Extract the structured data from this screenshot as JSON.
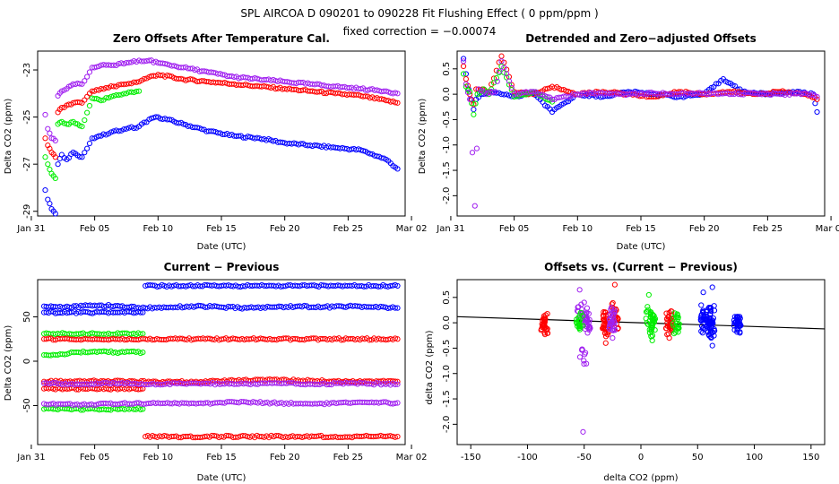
{
  "header": {
    "title": "SPL   AIRCOA D   090201 to 090228   Fit Flushing Effect ( 0 ppm/ppm )",
    "subtitle": "fixed correction = −0.00074"
  },
  "colors": {
    "blue": "#0000ff",
    "red": "#ff0000",
    "green": "#00ee00",
    "purple": "#a020f0",
    "black": "#000000"
  },
  "chart_data": [
    {
      "id": "zero-offsets",
      "type": "scatter",
      "title": "Zero Offsets After Temperature Cal.",
      "xlabel": "Date (UTC)",
      "ylabel": "Delta CO2 (ppm)",
      "xlim": [
        0.5,
        29.5
      ],
      "ylim": [
        -29.2,
        -22.2
      ],
      "x_ticks": [
        {
          "v": 0,
          "label": "Jan 31"
        },
        {
          "v": 5,
          "label": "Feb 05"
        },
        {
          "v": 10,
          "label": "Feb 10"
        },
        {
          "v": 15,
          "label": "Feb 15"
        },
        {
          "v": 20,
          "label": "Feb 20"
        },
        {
          "v": 25,
          "label": "Feb 25"
        },
        {
          "v": 30,
          "label": "Mar 02"
        }
      ],
      "y_ticks": [
        {
          "v": -23,
          "label": "-23"
        },
        {
          "v": -25,
          "label": "-25"
        },
        {
          "v": -27,
          "label": "-27"
        },
        {
          "v": -29,
          "label": "-29"
        }
      ],
      "series": [
        {
          "name": "blue",
          "color": "#0000ff",
          "x": [
            1.1,
            1.3,
            1.6,
            1.9,
            2.1,
            2.4,
            2.8,
            3.3,
            4.0,
            4.8,
            5.5,
            6.5,
            7.5,
            8.5,
            9.3,
            10.0,
            12.0,
            14.0,
            16.0,
            18.0,
            20.0,
            22.0,
            24.0,
            26.0,
            28.0,
            28.9
          ],
          "y": [
            -28.1,
            -28.5,
            -28.9,
            -29.1,
            -27.0,
            -26.6,
            -26.8,
            -26.5,
            -26.7,
            -25.9,
            -25.8,
            -25.6,
            -25.5,
            -25.4,
            -25.1,
            -25.0,
            -25.3,
            -25.6,
            -25.8,
            -25.9,
            -26.1,
            -26.2,
            -26.3,
            -26.4,
            -26.8,
            -27.2
          ]
        },
        {
          "name": "red",
          "color": "#ff0000",
          "x": [
            1.1,
            1.3,
            1.6,
            1.9,
            2.1,
            2.4,
            2.8,
            3.3,
            4.0,
            4.8,
            5.5,
            6.5,
            7.5,
            8.5,
            9.3,
            10.0,
            12.0,
            14.0,
            16.0,
            18.0,
            20.0,
            22.0,
            24.0,
            26.0,
            28.0,
            28.9
          ],
          "y": [
            -25.9,
            -26.2,
            -26.5,
            -26.7,
            -24.8,
            -24.6,
            -24.5,
            -24.4,
            -24.4,
            -23.9,
            -23.8,
            -23.7,
            -23.6,
            -23.5,
            -23.3,
            -23.2,
            -23.4,
            -23.5,
            -23.6,
            -23.7,
            -23.8,
            -23.9,
            -24.0,
            -24.1,
            -24.3,
            -24.4
          ]
        },
        {
          "name": "green",
          "color": "#00ee00",
          "x": [
            1.1,
            1.3,
            1.6,
            1.9,
            2.1,
            2.4,
            2.8,
            3.3,
            4.0,
            4.8,
            5.5,
            6.5,
            7.5,
            8.5
          ],
          "y": [
            -26.7,
            -27.0,
            -27.4,
            -27.6,
            -25.3,
            -25.2,
            -25.3,
            -25.2,
            -25.4,
            -24.2,
            -24.3,
            -24.1,
            -24.0,
            -23.9
          ]
        },
        {
          "name": "purple",
          "color": "#a020f0",
          "x": [
            1.1,
            1.3,
            1.6,
            1.9,
            2.1,
            2.4,
            2.8,
            3.3,
            4.0,
            4.8,
            5.5,
            6.5,
            7.5,
            8.5,
            9.3,
            10.0,
            12.0,
            14.0,
            16.0,
            18.0,
            20.0,
            22.0,
            24.0,
            26.0,
            28.0,
            28.9
          ],
          "y": [
            -24.9,
            -25.5,
            -25.9,
            -26.0,
            -24.1,
            -23.9,
            -23.8,
            -23.6,
            -23.6,
            -22.9,
            -22.8,
            -22.8,
            -22.7,
            -22.6,
            -22.6,
            -22.7,
            -22.9,
            -23.1,
            -23.3,
            -23.4,
            -23.5,
            -23.6,
            -23.7,
            -23.8,
            -23.9,
            -24.0
          ]
        }
      ]
    },
    {
      "id": "detrended",
      "type": "scatter",
      "title": "Detrended and Zero−adjusted Offsets",
      "xlabel": "Date (UTC)",
      "ylabel": "Delta CO2 (ppm)",
      "xlim": [
        0.5,
        29.5
      ],
      "ylim": [
        -2.4,
        0.85
      ],
      "x_ticks": [
        {
          "v": 0,
          "label": "Jan 31"
        },
        {
          "v": 5,
          "label": "Feb 05"
        },
        {
          "v": 10,
          "label": "Feb 10"
        },
        {
          "v": 15,
          "label": "Feb 15"
        },
        {
          "v": 20,
          "label": "Feb 20"
        },
        {
          "v": 25,
          "label": "Feb 25"
        },
        {
          "v": 30,
          "label": "Mar 02"
        }
      ],
      "y_ticks": [
        {
          "v": 0.5,
          "label": "0.5"
        },
        {
          "v": 0.0,
          "label": "0.0"
        },
        {
          "v": -0.5,
          "label": "-0.5"
        },
        {
          "v": -1.0,
          "label": "-1.0"
        },
        {
          "v": -1.5,
          "label": "-1.5"
        },
        {
          "v": -2.0,
          "label": "-2.0"
        }
      ],
      "series": [
        {
          "name": "blue",
          "color": "#0000ff",
          "x": [
            1.0,
            1.2,
            1.4,
            1.6,
            1.8,
            2.0,
            2.4,
            3.0,
            4.0,
            5.0,
            6.5,
            8.0,
            10.0,
            12.0,
            14.0,
            16.0,
            18.0,
            20.0,
            21.5,
            23.0,
            25.0,
            27.0,
            28.6,
            28.9
          ],
          "y": [
            0.7,
            0.4,
            0.1,
            -0.1,
            -0.3,
            -0.1,
            0.0,
            0.05,
            0.0,
            -0.05,
            0.02,
            -0.35,
            0.0,
            -0.05,
            0.05,
            0.0,
            -0.05,
            0.0,
            0.3,
            0.05,
            0.0,
            0.05,
            0.0,
            -0.35
          ]
        },
        {
          "name": "red",
          "color": "#ff0000",
          "x": [
            1.0,
            1.2,
            1.5,
            1.8,
            2.0,
            2.5,
            3.0,
            4.0,
            5.0,
            6.5,
            8.0,
            10.0,
            12.0,
            14.0,
            16.0,
            18.0,
            20.0,
            22.0,
            24.0,
            26.0,
            28.0,
            28.9
          ],
          "y": [
            0.55,
            0.3,
            0.0,
            -0.2,
            0.1,
            0.1,
            0.05,
            0.75,
            0.05,
            0.0,
            0.15,
            0.0,
            0.05,
            0.0,
            -0.05,
            0.05,
            0.0,
            0.05,
            0.0,
            0.05,
            0.0,
            -0.1
          ]
        },
        {
          "name": "green",
          "color": "#00ee00",
          "x": [
            1.0,
            1.2,
            1.5,
            1.8,
            2.1,
            2.6,
            3.0,
            4.0,
            5.0,
            6.5,
            8.0
          ],
          "y": [
            0.4,
            0.15,
            0.05,
            -0.4,
            0.0,
            0.1,
            0.0,
            0.55,
            -0.05,
            0.05,
            -0.15
          ]
        },
        {
          "name": "purple",
          "color": "#a020f0",
          "x": [
            1.0,
            1.2,
            1.5,
            1.9,
            2.2,
            2.8,
            3.5,
            4.0,
            5.0,
            6.5,
            8.0,
            10.0,
            12.0,
            14.0,
            16.0,
            18.0,
            20.0,
            22.0,
            24.0,
            26.0,
            28.0,
            28.9
          ],
          "y": [
            0.65,
            0.2,
            -0.1,
            -2.2,
            0.1,
            0.0,
            0.05,
            0.65,
            0.0,
            0.05,
            -0.1,
            0.0,
            0.02,
            0.0,
            0.02,
            0.0,
            0.02,
            0.0,
            0.02,
            0.0,
            0.02,
            -0.05
          ]
        }
      ]
    },
    {
      "id": "current-previous",
      "type": "scatter",
      "title": "Current − Previous",
      "xlabel": "Date (UTC)",
      "ylabel": "Delta CO2 (ppm)",
      "xlim": [
        0.5,
        29.5
      ],
      "ylim": [
        -94,
        92
      ],
      "x_ticks": [
        {
          "v": 0,
          "label": "Jan 31"
        },
        {
          "v": 5,
          "label": "Feb 05"
        },
        {
          "v": 10,
          "label": "Feb 10"
        },
        {
          "v": 15,
          "label": "Feb 15"
        },
        {
          "v": 20,
          "label": "Feb 20"
        },
        {
          "v": 25,
          "label": "Feb 25"
        },
        {
          "v": 30,
          "label": "Mar 02"
        }
      ],
      "y_ticks": [
        {
          "v": 50,
          "label": "50"
        },
        {
          "v": 0,
          "label": "0"
        },
        {
          "v": -50,
          "label": "-50"
        }
      ],
      "series": [
        {
          "name": "blue-upper",
          "color": "#0000ff",
          "x": [
            9.0,
            12.0,
            15.0,
            18.0,
            21.0,
            24.0,
            27.0,
            28.9
          ],
          "y": [
            85,
            85,
            85,
            85,
            85,
            85,
            85,
            85
          ]
        },
        {
          "name": "blue-mid",
          "color": "#0000ff",
          "x": [
            1.0,
            3.0,
            5.0,
            7.0,
            9.0,
            11.0,
            13.0,
            15.0,
            17.0,
            19.0,
            21.0,
            23.0,
            25.0,
            27.0,
            28.9
          ],
          "y": [
            62,
            61,
            63,
            62,
            60,
            61,
            62,
            61,
            60,
            61,
            62,
            61,
            62,
            61,
            60
          ]
        },
        {
          "name": "blue-lower",
          "color": "#0000ff",
          "x": [
            1.0,
            3.0,
            5.0,
            7.0,
            8.8
          ],
          "y": [
            55,
            55,
            55,
            55,
            55
          ]
        },
        {
          "name": "green-upper",
          "color": "#00ee00",
          "x": [
            1.0,
            3.0,
            5.0,
            7.0,
            8.8
          ],
          "y": [
            31,
            31,
            31,
            31,
            31
          ]
        },
        {
          "name": "green-mid",
          "color": "#00ee00",
          "x": [
            1.0,
            3.0,
            5.0,
            7.0,
            8.8
          ],
          "y": [
            7,
            9,
            11,
            10,
            10
          ]
        },
        {
          "name": "green-lower",
          "color": "#00ee00",
          "x": [
            1.0,
            3.0,
            5.0,
            7.0,
            8.8
          ],
          "y": [
            -54,
            -54,
            -54,
            -54,
            -54
          ]
        },
        {
          "name": "red-upper",
          "color": "#ff0000",
          "x": [
            1.0,
            5.0,
            9.0,
            13.0,
            17.0,
            21.0,
            25.0,
            28.9
          ],
          "y": [
            25,
            25,
            25,
            25,
            25,
            25,
            25,
            25
          ]
        },
        {
          "name": "red-mid",
          "color": "#ff0000",
          "x": [
            1.0,
            4.0,
            7.0,
            10.0,
            13.0,
            16.0,
            19.0,
            22.0,
            25.0,
            28.9
          ],
          "y": [
            -23,
            -23,
            -22,
            -24,
            -23,
            -22,
            -21,
            -22,
            -23,
            -23
          ]
        },
        {
          "name": "red-low",
          "color": "#ff0000",
          "x": [
            1.0,
            3.0,
            5.0,
            7.0,
            8.8
          ],
          "y": [
            -31,
            -31,
            -31,
            -31,
            -31
          ]
        },
        {
          "name": "red-bottom",
          "color": "#ff0000",
          "x": [
            9.0,
            12.0,
            15.0,
            18.0,
            21.0,
            24.0,
            27.0,
            28.9
          ],
          "y": [
            -85,
            -85,
            -85,
            -85,
            -85,
            -85,
            -85,
            -85
          ]
        },
        {
          "name": "purple-mid",
          "color": "#a020f0",
          "x": [
            1.0,
            4.0,
            7.0,
            10.0,
            13.0,
            16.0,
            19.0,
            22.0,
            25.0,
            28.9
          ],
          "y": [
            -25,
            -26,
            -25,
            -26,
            -25,
            -26,
            -25,
            -26,
            -25,
            -26
          ]
        },
        {
          "name": "purple-low",
          "color": "#a020f0",
          "x": [
            1.0,
            4.0,
            7.0,
            10.0,
            13.0,
            16.0,
            19.0,
            22.0,
            25.0,
            28.9
          ],
          "y": [
            -48,
            -49,
            -48,
            -47,
            -48,
            -46,
            -47,
            -48,
            -47,
            -47
          ]
        }
      ]
    },
    {
      "id": "offsets-vs-diff",
      "type": "scatter",
      "title": "Offsets vs. (Current − Previous)",
      "xlabel": "delta CO2 (ppm)",
      "ylabel": "delta CO2 (ppm)",
      "xlim": [
        -162,
        162
      ],
      "ylim": [
        -2.4,
        0.85
      ],
      "x_ticks": [
        {
          "v": -150,
          "label": "-150"
        },
        {
          "v": -100,
          "label": "-100"
        },
        {
          "v": -50,
          "label": "-50"
        },
        {
          "v": 0,
          "label": "0"
        },
        {
          "v": 50,
          "label": "50"
        },
        {
          "v": 100,
          "label": "100"
        },
        {
          "v": 150,
          "label": "150"
        }
      ],
      "y_ticks": [
        {
          "v": 0.5,
          "label": "0.5"
        },
        {
          "v": 0.0,
          "label": "0.0"
        },
        {
          "v": -0.5,
          "label": "-0.5"
        },
        {
          "v": -1.0,
          "label": "-1.0"
        },
        {
          "v": -1.5,
          "label": "-1.5"
        },
        {
          "v": -2.0,
          "label": "-2.0"
        }
      ],
      "fit_line": {
        "color": "#000000",
        "x": [
          -162,
          162
        ],
        "y": [
          0.12,
          -0.12
        ]
      },
      "series": [
        {
          "name": "red",
          "color": "#ff0000",
          "x": [
            -85,
            -85,
            -85,
            -31,
            -31,
            -31,
            -23,
            -23,
            25,
            25,
            25
          ],
          "y": [
            0.1,
            -0.05,
            -0.2,
            0.2,
            -0.1,
            -0.4,
            0.75,
            0.1,
            0.2,
            -0.05,
            -0.3
          ]
        },
        {
          "name": "purple",
          "color": "#a020f0",
          "x": [
            -54,
            -50,
            -48,
            -47,
            -26,
            -26,
            -25,
            -51
          ],
          "y": [
            0.65,
            0.4,
            0.1,
            -0.2,
            0.3,
            0.0,
            -0.3,
            -2.15
          ]
        },
        {
          "name": "green",
          "color": "#00ee00",
          "x": [
            -54,
            -54,
            7,
            9,
            10,
            10,
            31,
            31
          ],
          "y": [
            0.15,
            -0.1,
            0.55,
            0.2,
            -0.1,
            -0.35,
            0.1,
            -0.15
          ]
        },
        {
          "name": "blue",
          "color": "#0000ff",
          "x": [
            55,
            55,
            55,
            60,
            61,
            62,
            63,
            63,
            85,
            85,
            85
          ],
          "y": [
            0.6,
            0.2,
            -0.1,
            0.3,
            0.0,
            -0.3,
            0.7,
            -0.45,
            0.1,
            -0.05,
            -0.15
          ]
        }
      ]
    }
  ]
}
